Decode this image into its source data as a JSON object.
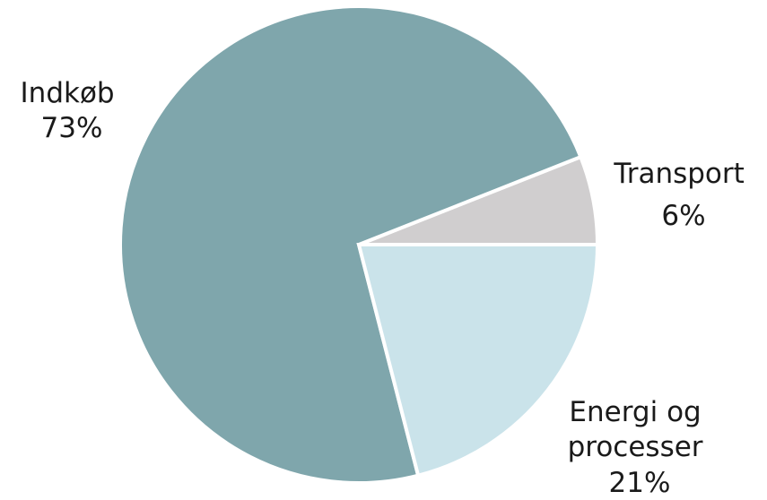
{
  "chart_data": {
    "type": "pie",
    "start_angle_deg": 0,
    "direction": "counterclockwise",
    "slices": [
      {
        "label_lines": [
          "Transport"
        ],
        "percent_label": "6%",
        "value": 6,
        "color": "#d0cecf"
      },
      {
        "label_lines": [
          "Indkøb"
        ],
        "percent_label": "73%",
        "value": 73,
        "color": "#7fa6ac"
      },
      {
        "label_lines": [
          "Energi og",
          "processer"
        ],
        "percent_label": "21%",
        "value": 21,
        "color": "#cae3ea"
      }
    ],
    "legend": "none",
    "title": ""
  }
}
